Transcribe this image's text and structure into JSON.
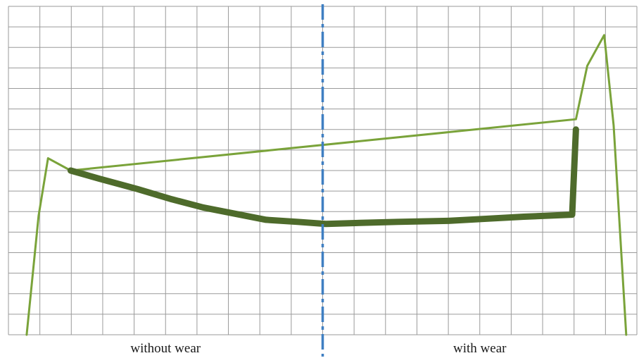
{
  "chart_data": {
    "type": "line",
    "title": "",
    "xlabel": "",
    "ylabel": "",
    "grid": true,
    "xlim": [
      0,
      100
    ],
    "ylim": [
      0,
      16
    ],
    "region_labels": [
      {
        "text": "without wear",
        "x": 25
      },
      {
        "text": "with wear",
        "x": 75
      }
    ],
    "divider_x": 50,
    "series": [
      {
        "role": "outer-profile",
        "color": "#7aa33a",
        "points": [
          [
            2.9,
            0
          ],
          [
            4.8,
            5.8
          ],
          [
            6.3,
            8.6
          ],
          [
            9.9,
            8.0
          ],
          [
            90.3,
            10.5
          ],
          [
            92.1,
            13.1
          ],
          [
            94.8,
            14.6
          ],
          [
            96.3,
            10.2
          ],
          [
            98.3,
            0
          ]
        ]
      },
      {
        "role": "inner-profile",
        "color": "#4e6b2b",
        "points": [
          [
            9.9,
            8.0
          ],
          [
            14.5,
            7.6
          ],
          [
            20.5,
            7.1
          ],
          [
            26.0,
            6.6
          ],
          [
            31.0,
            6.2
          ],
          [
            36.0,
            5.9
          ],
          [
            41.0,
            5.6
          ],
          [
            46.0,
            5.5
          ],
          [
            50.5,
            5.4
          ],
          [
            56.0,
            5.45
          ],
          [
            62.0,
            5.5
          ],
          [
            70.0,
            5.55
          ],
          [
            76.0,
            5.65
          ],
          [
            82.0,
            5.75
          ],
          [
            89.7,
            5.85
          ],
          [
            90.3,
            10.0
          ]
        ]
      }
    ]
  }
}
